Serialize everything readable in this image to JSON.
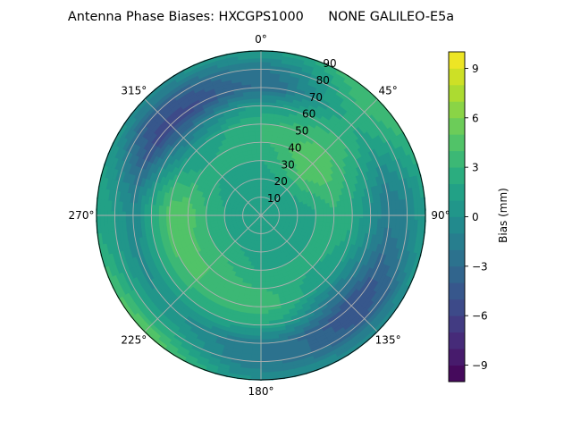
{
  "chart_data": {
    "type": "heatmap",
    "subtype": "polar-contour",
    "title": "Antenna Phase Biases: HXCGPS1000      NONE GALILEO-E5a",
    "colormap": "viridis",
    "colorbar": {
      "label": "Bias (mm)",
      "range": [
        -10,
        10
      ],
      "level_step": 1,
      "ticks": [
        -9,
        -6,
        -3,
        0,
        3,
        6,
        9
      ],
      "tick_labels": [
        "−9",
        "−6",
        "−3",
        "0",
        "3",
        "6",
        "9"
      ]
    },
    "angular_axis": {
      "direction": "clockwise",
      "zero_location": "top",
      "ticks": [
        0,
        45,
        90,
        135,
        180,
        225,
        270,
        315
      ],
      "tick_labels": [
        "0°",
        "45°",
        "90°",
        "135°",
        "180°",
        "225°",
        "270°",
        "315°"
      ]
    },
    "radial_axis": {
      "range": [
        0,
        90
      ],
      "ticks": [
        10,
        20,
        30,
        40,
        50,
        60,
        70,
        80,
        90
      ],
      "tick_labels": [
        "10",
        "20",
        "30",
        "40",
        "50",
        "60",
        "70",
        "80",
        "90"
      ]
    },
    "grid": true,
    "grid_color": "#b0b0b0",
    "azimuth": [
      0,
      45,
      90,
      135,
      180,
      225,
      270,
      315
    ],
    "zenith": [
      0,
      10,
      20,
      30,
      40,
      50,
      60,
      70,
      80,
      90
    ],
    "values": [
      [
        1,
        1,
        1,
        1,
        1,
        1,
        1,
        1
      ],
      [
        1,
        1,
        1,
        1,
        1,
        1,
        1,
        1
      ],
      [
        1.5,
        2,
        1.5,
        1.5,
        1.5,
        2,
        2,
        1.5
      ],
      [
        2,
        4,
        2,
        2,
        2,
        3,
        3,
        2
      ],
      [
        3,
        5,
        3,
        2,
        3,
        4,
        4.5,
        2
      ],
      [
        3,
        4,
        2,
        1,
        3.5,
        4,
        4.5,
        1
      ],
      [
        1,
        3,
        0,
        -2,
        2,
        2,
        2,
        -2
      ],
      [
        -3,
        2,
        -2,
        -5,
        -2,
        0,
        -1,
        -6
      ],
      [
        -2,
        3,
        -1,
        -4,
        -2,
        2,
        1,
        -4
      ],
      [
        1,
        4,
        1,
        0,
        0,
        5,
        2,
        0
      ]
    ]
  }
}
